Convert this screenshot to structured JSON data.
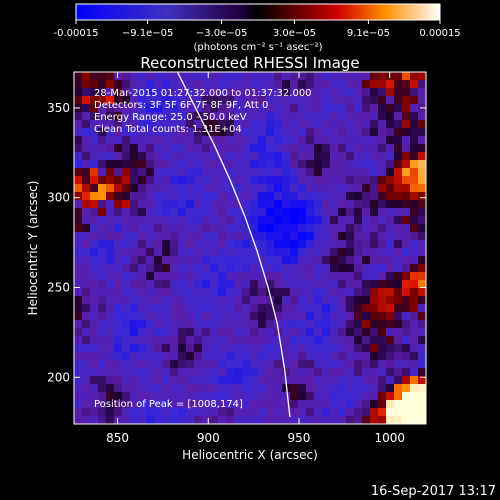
{
  "chart_data": {
    "type": "heatmap",
    "title": "Reconstructed RHESSI Image",
    "xlabel": "Heliocentric X (arcsec)",
    "ylabel": "Heliocentric Y (arcsec)",
    "xlim": [
      826,
      1020
    ],
    "ylim": [
      174,
      370
    ],
    "x_ticks": [
      850,
      900,
      950,
      1000
    ],
    "y_ticks": [
      200,
      250,
      300,
      350
    ],
    "colorbar": {
      "range": [
        -0.00015,
        0.00015
      ],
      "tick_values": [
        -0.00015,
        -9.1e-05,
        -3e-05,
        3e-05,
        9.1e-05,
        0.00015
      ],
      "tick_labels": [
        "-0.00015",
        "−9.1e−05",
        "−3.0e−05",
        "3.0e−05",
        "9.1e−05",
        "0.00015"
      ],
      "units": "(photons cm⁻² s⁻¹ asec⁻²)"
    },
    "annotations": {
      "time": "28-Mar-2015 01:27:32.000 to 01:37:32.000",
      "detectors": "Detectors: 3F 5F 6F 7F 8F 9F, Att 0",
      "energy": "Energy Range: 25.0 - 50.0 keV",
      "clean": "Clean    Total counts: 1.31E+04",
      "peak": "Position of Peak = [1008,174]"
    },
    "limb_curve": {
      "x": [
        883,
        893,
        903,
        912,
        920,
        927,
        933,
        938,
        942,
        945
      ],
      "y": [
        370,
        350,
        330,
        310,
        290,
        270,
        250,
        230,
        205,
        178
      ]
    },
    "footer_date": "16-Sep-2017 13:17"
  }
}
